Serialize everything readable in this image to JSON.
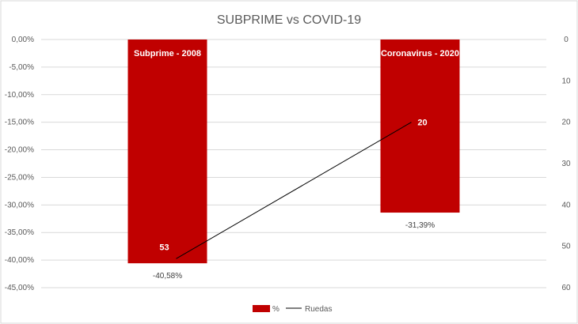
{
  "chart_data": {
    "type": "bar",
    "title": "SUBPRIME vs COVID-19",
    "categories": [
      "Subprime - 2008",
      "Coronavirus - 2020"
    ],
    "series": [
      {
        "name": "%",
        "type": "bar",
        "axis": "left",
        "values": [
          -40.58,
          -31.39
        ],
        "labels": [
          "-40,58%",
          "-31,39%"
        ],
        "color": "#c00000"
      },
      {
        "name": "Ruedas",
        "type": "line",
        "axis": "right",
        "values": [
          53,
          20
        ],
        "labels": [
          "53",
          "20"
        ],
        "color": "#000000"
      }
    ],
    "left_axis": {
      "range": [
        -45,
        0
      ],
      "ticks": [
        0,
        -5,
        -10,
        -15,
        -20,
        -25,
        -30,
        -35,
        -40,
        -45
      ],
      "tick_labels": [
        "0,00%",
        "-5,00%",
        "-10,00%",
        "-15,00%",
        "-20,00%",
        "-25,00%",
        "-30,00%",
        "-35,00%",
        "-40,00%",
        "-45,00%"
      ]
    },
    "right_axis": {
      "range": [
        0,
        60
      ],
      "reversed": true,
      "ticks": [
        0,
        10,
        20,
        30,
        40,
        50,
        60
      ],
      "tick_labels": [
        "0",
        "10",
        "20",
        "30",
        "40",
        "50",
        "60"
      ]
    },
    "grid": true,
    "legend_position": "bottom"
  }
}
